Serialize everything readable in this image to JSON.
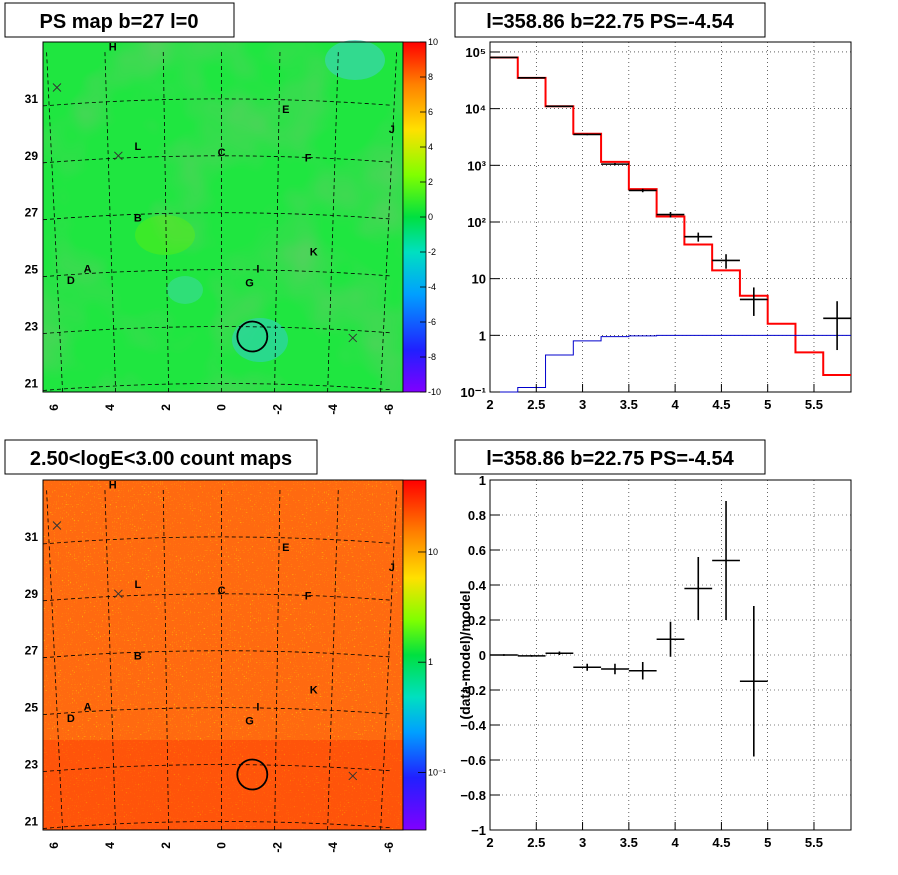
{
  "panels": {
    "ps_map": {
      "title": "PS map b=27 l=0",
      "colorbar": {
        "min": -10,
        "max": 10,
        "ticks": [
          -10,
          -8,
          -6,
          -4,
          -2,
          0,
          2,
          4,
          6,
          8,
          10
        ]
      }
    },
    "count_map": {
      "title": "2.50<logE<3.00 count maps",
      "colorbar": {
        "tick_labels": [
          "10",
          "1",
          "10⁻¹"
        ],
        "tick_values": [
          10,
          1,
          0.1
        ]
      }
    },
    "spectrum": {
      "title": "l=358.86 b=22.75 PS=-4.54"
    },
    "residual": {
      "title": "l=358.86 b=22.75 PS=-4.54"
    }
  },
  "sky_maps": {
    "x_ticks": [
      "6",
      "4",
      "2",
      "0",
      "-2",
      "-4",
      "-6"
    ],
    "y_ticks": [
      "21",
      "23",
      "25",
      "27",
      "29",
      "31"
    ],
    "source_labels": [
      {
        "label": "H",
        "l": 3.9,
        "b": 32.7
      },
      {
        "label": "E",
        "l": -2.3,
        "b": 30.5
      },
      {
        "label": "J",
        "l": -6.1,
        "b": 29.8
      },
      {
        "label": "L",
        "l": 3.0,
        "b": 29.2
      },
      {
        "label": "C",
        "l": 0.0,
        "b": 29.0
      },
      {
        "label": "F",
        "l": -3.1,
        "b": 28.8
      },
      {
        "label": "B",
        "l": 3.0,
        "b": 26.7
      },
      {
        "label": "K",
        "l": -3.3,
        "b": 25.5
      },
      {
        "label": "A",
        "l": 4.8,
        "b": 24.9
      },
      {
        "label": "I",
        "l": -1.3,
        "b": 24.9
      },
      {
        "label": "D",
        "l": 5.4,
        "b": 24.5
      },
      {
        "label": "G",
        "l": -1.0,
        "b": 24.4
      }
    ],
    "crosses": [
      {
        "l": 5.9,
        "b": 31.4
      },
      {
        "l": 3.7,
        "b": 29.0
      },
      {
        "l": -4.7,
        "b": 22.6
      }
    ],
    "circle": {
      "l": -1.1,
      "b": 22.65,
      "r": 0.5
    }
  },
  "chart_data": [
    {
      "type": "line",
      "panel": "spectrum",
      "title": "l=358.86 b=22.75 PS=-4.54",
      "xlim": [
        2,
        5.9
      ],
      "ylim": [
        0.1,
        150000
      ],
      "log_y": true,
      "x_ticks": [
        "2",
        "2.5",
        "3",
        "3.5",
        "4",
        "4.5",
        "5",
        "5.5"
      ],
      "y_ticks": [
        {
          "label": "10⁻¹",
          "v": 0.1
        },
        {
          "label": "1",
          "v": 1
        },
        {
          "label": "10",
          "v": 10
        },
        {
          "label": "10²",
          "v": 100
        },
        {
          "label": "10³",
          "v": 1000
        },
        {
          "label": "10⁴",
          "v": 10000
        },
        {
          "label": "10⁵",
          "v": 100000
        }
      ],
      "grid": true,
      "series": [
        {
          "kind": "step",
          "color": "#ff0000",
          "edges": [
            2.0,
            2.3,
            2.6,
            2.9,
            3.2,
            3.5,
            3.8,
            4.1,
            4.4,
            4.7,
            5.0,
            5.3,
            5.6,
            5.9
          ],
          "values": [
            80000,
            35000,
            11000,
            3600,
            1150,
            380,
            125,
            40,
            14,
            5,
            1.6,
            0.5,
            0.2
          ]
        },
        {
          "kind": "step",
          "color": "#0000cc",
          "edges": [
            2.0,
            2.3,
            2.6,
            2.9,
            3.2,
            3.5,
            3.8,
            4.1,
            4.4,
            4.7,
            5.0,
            5.3,
            5.6,
            5.9
          ],
          "values": [
            0.1,
            0.12,
            0.45,
            0.8,
            0.95,
            0.98,
            1,
            1,
            1,
            1,
            1,
            1,
            1
          ]
        },
        {
          "kind": "points",
          "color": "#000000",
          "points": [
            {
              "x": 2.15,
              "y": 80000,
              "xerr": 0.15,
              "ylo": 79000,
              "yhi": 81000
            },
            {
              "x": 2.45,
              "y": 35000,
              "xerr": 0.15,
              "ylo": 34500,
              "yhi": 35500
            },
            {
              "x": 2.75,
              "y": 11000,
              "xerr": 0.15,
              "ylo": 10800,
              "yhi": 11200
            },
            {
              "x": 3.05,
              "y": 3500,
              "xerr": 0.15,
              "ylo": 3400,
              "yhi": 3600
            },
            {
              "x": 3.35,
              "y": 1050,
              "xerr": 0.15,
              "ylo": 1000,
              "yhi": 1100
            },
            {
              "x": 3.65,
              "y": 360,
              "xerr": 0.15,
              "ylo": 335,
              "yhi": 385
            },
            {
              "x": 3.95,
              "y": 135,
              "xerr": 0.15,
              "ylo": 120,
              "yhi": 150
            },
            {
              "x": 4.25,
              "y": 55,
              "xerr": 0.15,
              "ylo": 45,
              "yhi": 65
            },
            {
              "x": 4.55,
              "y": 21,
              "xerr": 0.15,
              "ylo": 15,
              "yhi": 27
            },
            {
              "x": 4.85,
              "y": 4.3,
              "xerr": 0.15,
              "ylo": 2.2,
              "yhi": 7
            },
            {
              "x": 5.75,
              "y": 2,
              "xerr": 0.15,
              "ylo": 0.55,
              "yhi": 4
            }
          ]
        }
      ]
    },
    {
      "type": "scatter",
      "panel": "residual",
      "title": "l=358.86 b=22.75 PS=-4.54",
      "ylabel": "(data-model)/model",
      "xlim": [
        2,
        5.9
      ],
      "ylim": [
        -1,
        1
      ],
      "x_ticks": [
        "2",
        "2.5",
        "3",
        "3.5",
        "4",
        "4.5",
        "5",
        "5.5"
      ],
      "y_ticks": [
        "−1",
        "−0.8",
        "−0.6",
        "−0.4",
        "−0.2",
        "0",
        "0.2",
        "0.4",
        "0.6",
        "0.8",
        "1"
      ],
      "grid": true,
      "points": [
        {
          "x": 2.15,
          "y": 0.0,
          "xerr": 0.15,
          "yerr": 0.005
        },
        {
          "x": 2.45,
          "y": -0.005,
          "xerr": 0.15,
          "yerr": 0.005
        },
        {
          "x": 2.75,
          "y": 0.01,
          "xerr": 0.15,
          "yerr": 0.01
        },
        {
          "x": 3.05,
          "y": -0.07,
          "xerr": 0.15,
          "yerr": 0.02
        },
        {
          "x": 3.35,
          "y": -0.08,
          "xerr": 0.15,
          "yerr": 0.03
        },
        {
          "x": 3.65,
          "y": -0.09,
          "xerr": 0.15,
          "yerr": 0.05
        },
        {
          "x": 3.95,
          "y": 0.09,
          "xerr": 0.15,
          "yerr": 0.1
        },
        {
          "x": 4.25,
          "y": 0.38,
          "xerr": 0.15,
          "yerr": 0.18
        },
        {
          "x": 4.55,
          "y": 0.54,
          "xerr": 0.15,
          "yerr": 0.34
        },
        {
          "x": 4.85,
          "y": -0.15,
          "xerr": 0.15,
          "yerr": 0.43
        }
      ]
    }
  ]
}
